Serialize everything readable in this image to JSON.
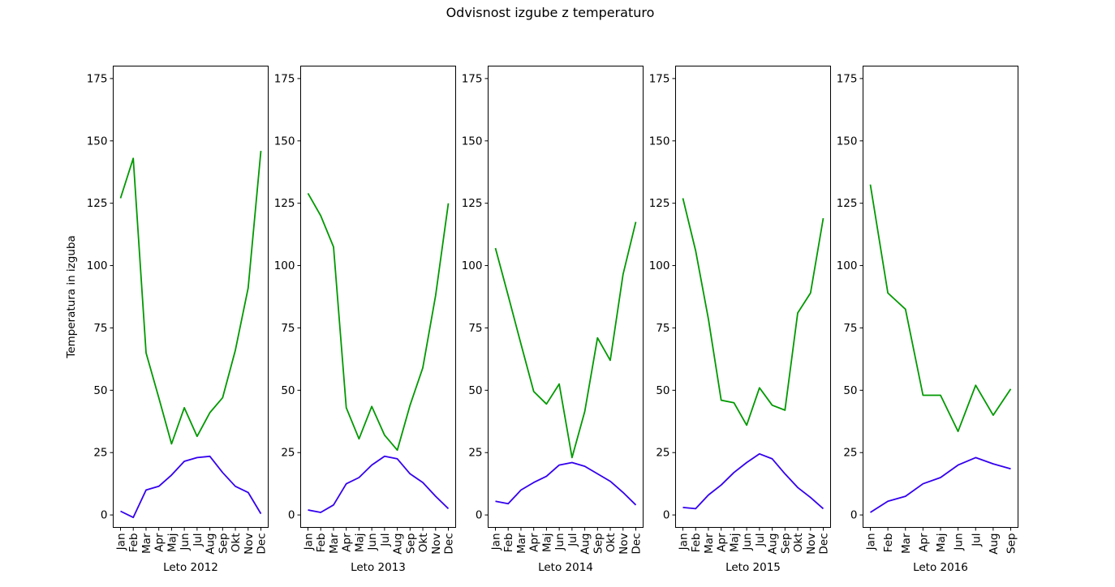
{
  "chart_data": {
    "type": "line",
    "title": "Odvisnost izgube z temperaturo",
    "ylabel": "Temperatura in izguba",
    "ylim": [
      -5,
      180
    ],
    "yticks": [
      0,
      25,
      50,
      75,
      100,
      125,
      150,
      175
    ],
    "colors": {
      "loss": "#009900",
      "temperature": "#3300ee"
    },
    "panels": [
      {
        "xlabel": "Leto 2012",
        "categories": [
          "Jan",
          "Feb",
          "Mar",
          "Apr",
          "Maj",
          "Jun",
          "Jul",
          "Aug",
          "Sep",
          "Okt",
          "Nov",
          "Dec"
        ],
        "series": [
          {
            "values": [
              127,
              143,
              65,
              47,
              28.5,
              43,
              31.5,
              41,
              47,
              66,
              91,
              146
            ]
          },
          {
            "values": [
              1.5,
              -1,
              10,
              11.5,
              16,
              21.5,
              23,
              23.5,
              17,
              11.5,
              9,
              0.5
            ]
          }
        ]
      },
      {
        "xlabel": "Leto 2013",
        "categories": [
          "Jan",
          "Feb",
          "Mar",
          "Apr",
          "Maj",
          "Jun",
          "Jul",
          "Aug",
          "Sep",
          "Okt",
          "Nov",
          "Dec"
        ],
        "series": [
          {
            "values": [
              129,
              120,
              107.5,
              43,
              30.5,
              43.5,
              32,
              26,
              44,
              59,
              88,
              125
            ]
          },
          {
            "values": [
              2,
              1,
              4,
              12.5,
              15,
              20,
              23.5,
              22.5,
              16.5,
              13,
              7.5,
              2.5
            ]
          }
        ]
      },
      {
        "xlabel": "Leto 2014",
        "categories": [
          "Jan",
          "Feb",
          "Mar",
          "Apr",
          "Maj",
          "Jun",
          "Jul",
          "Aug",
          "Sep",
          "Okt",
          "Nov",
          "Dec"
        ],
        "series": [
          {
            "values": [
              107,
              88,
              68.5,
              49.5,
              44.5,
              52.5,
              23,
              41.5,
              71,
              62,
              96.5,
              117.5
            ]
          },
          {
            "values": [
              5.5,
              4.5,
              10,
              13,
              15.5,
              20,
              21,
              19.5,
              16.5,
              13.5,
              9,
              4
            ]
          }
        ]
      },
      {
        "xlabel": "Leto 2015",
        "categories": [
          "Jan",
          "Feb",
          "Mar",
          "Apr",
          "Maj",
          "Jun",
          "Jul",
          "Aug",
          "Sep",
          "Okt",
          "Nov",
          "Dec"
        ],
        "series": [
          {
            "values": [
              127,
              106,
              78.5,
              46,
              45,
              36,
              51,
              44,
              42,
              81,
              89,
              119
            ]
          },
          {
            "values": [
              3,
              2.5,
              8,
              12,
              17,
              21,
              24.5,
              22.5,
              16.5,
              11,
              7,
              2.5
            ]
          }
        ]
      },
      {
        "xlabel": "Leto 2016",
        "categories": [
          "Jan",
          "Feb",
          "Mar",
          "Apr",
          "Maj",
          "Jun",
          "Jul",
          "Aug",
          "Sep"
        ],
        "series": [
          {
            "values": [
              132.5,
              89,
              82.5,
              48,
              48,
              33.5,
              52,
              40,
              50.5
            ]
          },
          {
            "values": [
              1,
              5.5,
              7.5,
              12.5,
              15,
              20,
              23,
              20.5,
              18.5
            ]
          }
        ]
      }
    ]
  }
}
